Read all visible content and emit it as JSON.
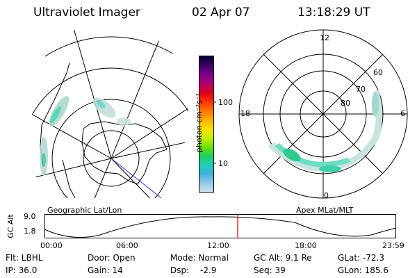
{
  "header": {
    "instrument": "Ultraviolet Imager",
    "date": "02 Apr 07",
    "time": "13:18:29 UT"
  },
  "geo_panel": {
    "label": "Geographic Lat/Lon"
  },
  "colorbar": {
    "unit_label": "photon cm⁻²s⁻¹",
    "ticks": [
      "100",
      "10"
    ],
    "colors": [
      "#000030",
      "#3a0060",
      "#7a0090",
      "#b00070",
      "#d80020",
      "#ff3000",
      "#ff7000",
      "#ffb000",
      "#ffe000",
      "#c8f000",
      "#70e000",
      "#20d060",
      "#20d0b0",
      "#40b0e0",
      "#90c8e8",
      "#d0e4ec"
    ]
  },
  "apex_panel": {
    "label": "Apex MLat/MLT",
    "mlt_labels": {
      "top": "12",
      "left": "18",
      "right": "6",
      "bottom": "0"
    },
    "lat_labels": [
      "60",
      "70",
      "80"
    ]
  },
  "orbit_plot": {
    "ylabel": "GC Alt",
    "y_ticks": [
      "9.0",
      "1.8"
    ],
    "x_ticks": [
      "00:00",
      "06:00",
      "12:00",
      "18:00",
      "23:59"
    ],
    "marker_color": "#e00000"
  },
  "info": {
    "flt": "Flt: LBHL",
    "ip": "IP: 36.0",
    "door": "Door: Open",
    "gain": "Gain: 14",
    "mode": "Mode: Normal",
    "dsp": "Dsp:",
    "dsp_val": "-2.9",
    "gc_alt": "GC Alt: 9.1 Re",
    "seq": "Seq: 39",
    "glat": "GLat: -72.3",
    "glon": "GLon: 185.6"
  }
}
